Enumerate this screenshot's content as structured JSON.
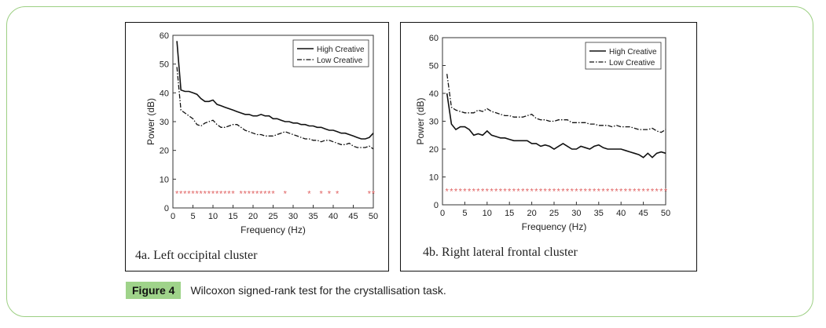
{
  "colors": {
    "frame_border": "#9ccf82",
    "figure_tag_bg": "#9fd38a",
    "marker": "#e06060"
  },
  "caption": {
    "tag": "Figure 4",
    "text": "Wilcoxon signed-rank test for the crystallisation task."
  },
  "chart_data": [
    {
      "type": "line",
      "panel_label": "4a. Left occipital cluster",
      "xlabel": "Frequency (Hz)",
      "ylabel": "Power (dB)",
      "xlim": [
        0,
        50
      ],
      "ylim": [
        0,
        60
      ],
      "xticks": [
        "0",
        "5",
        "10",
        "15",
        "20",
        "25",
        "30",
        "35",
        "40",
        "45",
        "50"
      ],
      "yticks": [
        "0",
        "10",
        "20",
        "30",
        "40",
        "50",
        "60"
      ],
      "legend_position": "top-right",
      "x": [
        1,
        2,
        3,
        4,
        5,
        6,
        7,
        8,
        9,
        10,
        11,
        12,
        13,
        14,
        15,
        16,
        17,
        18,
        19,
        20,
        21,
        22,
        23,
        24,
        25,
        26,
        27,
        28,
        29,
        30,
        31,
        32,
        33,
        34,
        35,
        36,
        37,
        38,
        39,
        40,
        41,
        42,
        43,
        44,
        45,
        46,
        47,
        48,
        49,
        50
      ],
      "series": [
        {
          "name": "High Creative",
          "style": "solid",
          "values": [
            58,
            41,
            40.5,
            40.5,
            40,
            39.5,
            38,
            37,
            37,
            37.5,
            36,
            35.5,
            35,
            34.5,
            34,
            33.5,
            33,
            32.5,
            32.5,
            32,
            32,
            32.5,
            32,
            32,
            31,
            31,
            30.5,
            30,
            30,
            29.5,
            29.5,
            29,
            29,
            28.5,
            28.5,
            28,
            28,
            27.5,
            27,
            27,
            26.5,
            26,
            26,
            25.5,
            25,
            24.5,
            24,
            24,
            24.5,
            26
          ]
        },
        {
          "name": "Low Creative",
          "style": "dashdot",
          "values": [
            49,
            34,
            33,
            32,
            31,
            29,
            28.5,
            29.5,
            30,
            30.5,
            29,
            28,
            28,
            28.5,
            29,
            29,
            28,
            27,
            26.5,
            26,
            25.5,
            25.5,
            25,
            25,
            25,
            25.5,
            26,
            26.5,
            26,
            25.5,
            25,
            24.5,
            24,
            24,
            23.5,
            23.5,
            23,
            23.5,
            23.5,
            23,
            22.5,
            22,
            22,
            22.5,
            21.5,
            21,
            21,
            21,
            21.5,
            20.5
          ]
        }
      ],
      "significance_markers": {
        "y": 5,
        "x": [
          1,
          2,
          3,
          4,
          5,
          6,
          7,
          8,
          9,
          10,
          11,
          12,
          13,
          14,
          15,
          17,
          18,
          19,
          20,
          21,
          22,
          23,
          24,
          25,
          28,
          34,
          37,
          39,
          41,
          49,
          50
        ]
      }
    },
    {
      "type": "line",
      "panel_label": "4b. Right lateral frontal cluster",
      "xlabel": "Frequency (Hz)",
      "ylabel": "Power (dB)",
      "xlim": [
        0,
        50
      ],
      "ylim": [
        0,
        60
      ],
      "xticks": [
        "0",
        "5",
        "10",
        "15",
        "20",
        "25",
        "30",
        "35",
        "40",
        "45",
        "50"
      ],
      "yticks": [
        "0",
        "10",
        "20",
        "30",
        "40",
        "50",
        "60"
      ],
      "legend_position": "top-right",
      "x": [
        1,
        2,
        3,
        4,
        5,
        6,
        7,
        8,
        9,
        10,
        11,
        12,
        13,
        14,
        15,
        16,
        17,
        18,
        19,
        20,
        21,
        22,
        23,
        24,
        25,
        26,
        27,
        28,
        29,
        30,
        31,
        32,
        33,
        34,
        35,
        36,
        37,
        38,
        39,
        40,
        41,
        42,
        43,
        44,
        45,
        46,
        47,
        48,
        49,
        50
      ],
      "series": [
        {
          "name": "High Creative",
          "style": "solid",
          "values": [
            40,
            29,
            27,
            28,
            28,
            27,
            25,
            25.5,
            25,
            26.5,
            25,
            24.5,
            24,
            24,
            23.5,
            23,
            23,
            23,
            23,
            22,
            22,
            21,
            21.5,
            21,
            20,
            21,
            22,
            21,
            20,
            20,
            21,
            20.5,
            20,
            21,
            21.5,
            20.5,
            20,
            20,
            20,
            20,
            19.5,
            19,
            18.5,
            18,
            17,
            18.5,
            17,
            18.5,
            19,
            18.5
          ]
        },
        {
          "name": "Low Creative",
          "style": "dashdot",
          "values": [
            47,
            35,
            34,
            33.5,
            33,
            33,
            33,
            34,
            33.5,
            34.5,
            33.5,
            33,
            32.5,
            32,
            32,
            31.5,
            31.5,
            31.5,
            32,
            32.5,
            31,
            30.5,
            30.5,
            30,
            30,
            30.5,
            30.5,
            30.5,
            29.5,
            29.5,
            29.5,
            29.5,
            29,
            29,
            28.5,
            28.5,
            28.5,
            28,
            28.5,
            28,
            28,
            28,
            27.5,
            27,
            27,
            27,
            27.5,
            26.5,
            26,
            27
          ]
        }
      ],
      "significance_markers": {
        "y": 5,
        "x": [
          1,
          2,
          3,
          4,
          5,
          6,
          7,
          8,
          9,
          10,
          11,
          12,
          13,
          14,
          15,
          16,
          17,
          18,
          19,
          20,
          21,
          22,
          23,
          24,
          25,
          26,
          27,
          28,
          29,
          30,
          31,
          32,
          33,
          34,
          35,
          36,
          37,
          38,
          39,
          40,
          41,
          42,
          43,
          44,
          45,
          46,
          47,
          48,
          49,
          50
        ]
      }
    }
  ]
}
